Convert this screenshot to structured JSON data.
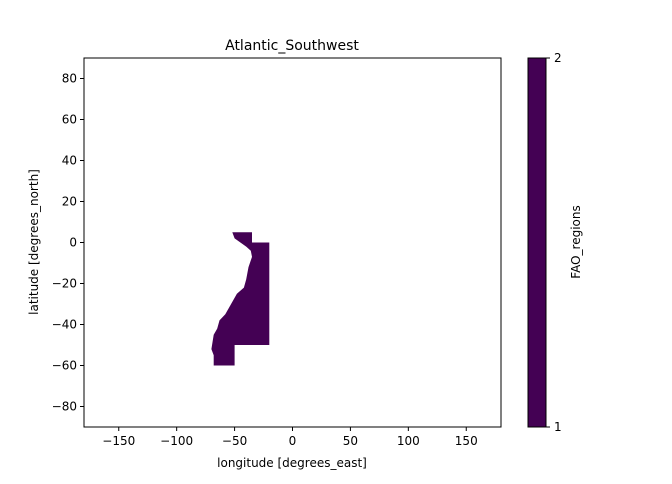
{
  "title": "Atlantic_Southwest",
  "xlabel": "longitude [degrees_east]",
  "ylabel": "latitude [degrees_north]",
  "x_ticks": [
    -150,
    -100,
    -50,
    0,
    50,
    100,
    150
  ],
  "y_ticks": [
    80,
    60,
    40,
    20,
    0,
    -20,
    -40,
    -60,
    -80
  ],
  "x_tick_labels": [
    "−150",
    "−100",
    "−50",
    "0",
    "50",
    "100",
    "150"
  ],
  "y_tick_labels": [
    "80",
    "60",
    "40",
    "20",
    "0",
    "−20",
    "−40",
    "−60",
    "−80"
  ],
  "colorbar": {
    "label": "FAO_regions",
    "min_label": "1",
    "max_label": "2",
    "color": "#440154"
  },
  "chart_data": {
    "type": "heatmap",
    "title": "Atlantic_Southwest",
    "xlabel": "longitude [degrees_east]",
    "ylabel": "latitude [degrees_north]",
    "xlim": [
      -180,
      180
    ],
    "ylim": [
      -90,
      90
    ],
    "grid": false,
    "value_range": [
      1,
      2
    ],
    "region_fill_color": "#440154",
    "region_outline_lonlat": [
      [
        -52,
        5
      ],
      [
        -35,
        5
      ],
      [
        -35,
        0
      ],
      [
        -20,
        0
      ],
      [
        -20,
        -50
      ],
      [
        -50,
        -50
      ],
      [
        -50,
        -60
      ],
      [
        -68,
        -60
      ],
      [
        -68,
        -55
      ],
      [
        -70,
        -52
      ],
      [
        -68,
        -45
      ],
      [
        -65,
        -42
      ],
      [
        -63,
        -38
      ],
      [
        -58,
        -35
      ],
      [
        -53,
        -30
      ],
      [
        -48,
        -25
      ],
      [
        -42,
        -22
      ],
      [
        -40,
        -18
      ],
      [
        -38,
        -12
      ],
      [
        -35,
        -7
      ],
      [
        -36,
        -4
      ],
      [
        -40,
        -2
      ],
      [
        -45,
        0
      ],
      [
        -50,
        2
      ],
      [
        -52,
        5
      ]
    ]
  }
}
